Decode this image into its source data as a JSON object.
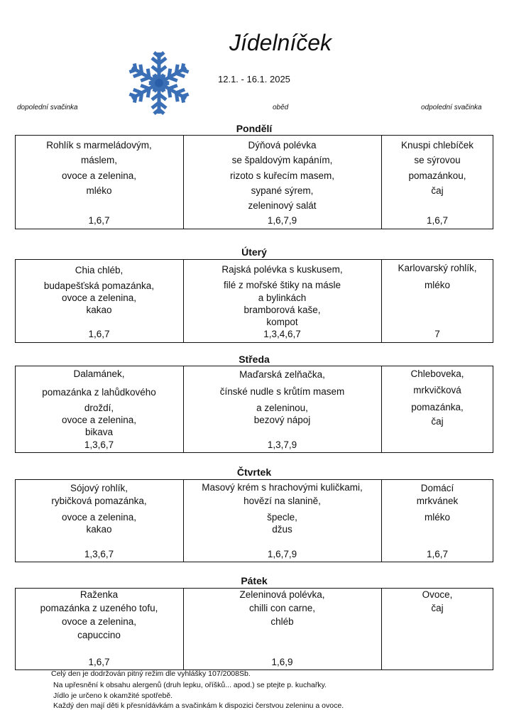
{
  "header": {
    "title": "Jídelníček",
    "date_range": "12.1. - 16.1. 2025",
    "icon": "snowflake-icon",
    "columns": [
      "dopolední svačinka",
      "oběd",
      "odpolední svačinka"
    ]
  },
  "days": [
    {
      "name": "Pondělí",
      "cells": [
        {
          "lines": [
            "Rohlík s marmeládovým,",
            "máslem,",
            "ovoce a zelenina,",
            "mléko"
          ],
          "allergens": "1,6,7"
        },
        {
          "lines": [
            "Dýňová polévka",
            "se špaldovým kapáním,",
            "rizoto s kuřecím masem,",
            "sypané sýrem,",
            "zeleninový salát"
          ],
          "allergens": "1,6,7,9"
        },
        {
          "lines": [
            "Knuspi chlebíček",
            "se sýrovou",
            "pomazánkou,",
            "čaj"
          ],
          "allergens": "1,6,7"
        }
      ]
    },
    {
      "name": "Úterý",
      "cells": [
        {
          "lines": [
            "Chia chléb,",
            "budapešťská pomazánka,",
            "ovoce a zelenina,",
            "kakao"
          ],
          "allergens": "1,6,7"
        },
        {
          "lines": [
            "Rajská polévka s kuskusem,",
            "filé z mořské štiky na másle",
            "a bylinkách",
            "bramborová kaše,",
            "kompot"
          ],
          "allergens": "1,3,4,6,7"
        },
        {
          "lines": [
            "Karlovarský rohlík,",
            "mléko"
          ],
          "allergens": "7"
        }
      ]
    },
    {
      "name": "Středa",
      "cells": [
        {
          "lines": [
            "Dalamánek,",
            "pomazánka z lahůdkového",
            "droždí,",
            "ovoce a zelenina,",
            "bikava"
          ],
          "allergens": "1,3,6,7"
        },
        {
          "lines": [
            "Maďarská zelňačka,",
            "čínské nudle s krůtím masem",
            "a zeleninou,",
            "bezový nápoj"
          ],
          "allergens": "1,3,7,9"
        },
        {
          "lines": [
            "Chleboveka,",
            "mrkvičková",
            "pomazánka,",
            "čaj"
          ],
          "allergens": ""
        }
      ]
    },
    {
      "name": "Čtvrtek",
      "cells": [
        {
          "lines": [
            "Sójový rohlík,",
            "rybičková pomazánka,",
            "ovoce a zelenina,",
            "kakao"
          ],
          "allergens": "1,3,6,7"
        },
        {
          "lines": [
            "Masový krém s hrachovými kuličkami,",
            "hovězí na slanině,",
            "špecle,",
            "džus"
          ],
          "allergens": "1,6,7,9"
        },
        {
          "lines": [
            "Domácí",
            "mrkvánek",
            "mléko"
          ],
          "allergens": "1,6,7"
        }
      ]
    },
    {
      "name": "Pátek",
      "cells": [
        {
          "lines": [
            "Raženka",
            "pomazánka z uzeného tofu,",
            "ovoce a zelenina,",
            "capuccino"
          ],
          "allergens": "1,6,7"
        },
        {
          "lines": [
            "Zeleninová polévka,",
            "chilli con carne,",
            "chléb"
          ],
          "allergens": "1,6,9"
        },
        {
          "lines": [
            "Ovoce,",
            "čaj"
          ],
          "allergens": ""
        }
      ]
    }
  ],
  "footer": [
    "Celý den je dodržován pitný režim dle vyhlášky 107/2008Sb.",
    "Na upřesnění k obsahu alergenů (druh lepku, oříšků... apod.) se ptejte p. kuchařky.",
    "Jídlo je určeno k okamžité spotřebě.",
    "Každý den mají děti k přesnídávkám a svačinkám k dispozici čerstvou zeleninu a ovoce."
  ]
}
